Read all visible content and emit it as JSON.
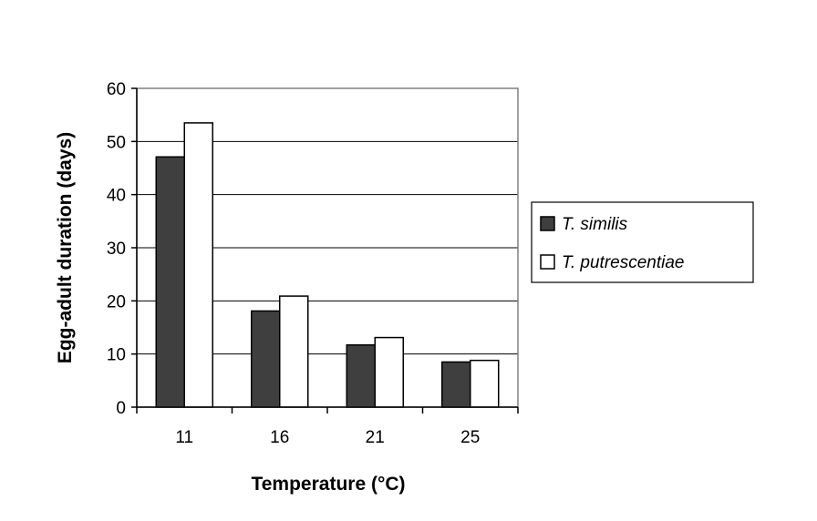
{
  "chart_data": {
    "type": "bar",
    "title": "",
    "xlabel": "Temperature (°C)",
    "ylabel": "Egg-adult duration (days)",
    "categories": [
      "11",
      "16",
      "21",
      "25"
    ],
    "ylim": [
      0,
      60
    ],
    "yticks": [
      0,
      10,
      20,
      30,
      40,
      50,
      60
    ],
    "grid": true,
    "legend_position": "right",
    "series": [
      {
        "name": "T. similis",
        "values": [
          47.1,
          18.1,
          11.7,
          8.5
        ],
        "color": "#3f3f3f"
      },
      {
        "name": "T. putrescentiae",
        "values": [
          53.5,
          20.9,
          13.1,
          8.8
        ],
        "color": "#ffffff"
      }
    ]
  }
}
